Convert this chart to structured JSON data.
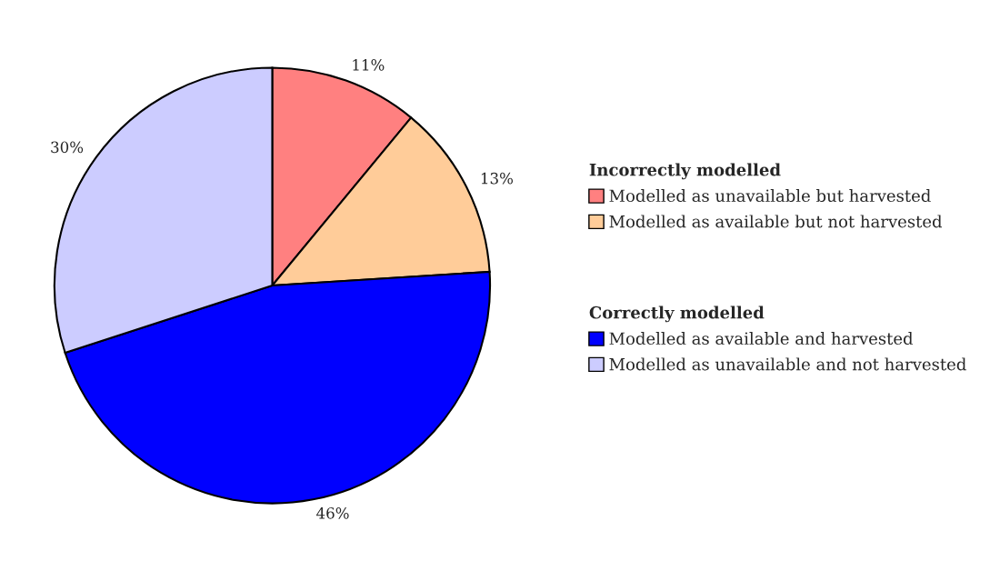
{
  "chart_data": {
    "type": "pie",
    "categories": [
      "Modelled as unavailable but harvested",
      "Modelled as available but not harvested",
      "Modelled as available and harvested",
      "Modelled as unavailable and not harvested"
    ],
    "values": [
      11,
      13,
      46,
      30
    ],
    "value_labels": [
      "11%",
      "13%",
      "46%",
      "30%"
    ],
    "colors": [
      "#ff8080",
      "#ffcc99",
      "#0000ff",
      "#ccccff"
    ],
    "annotations": [
      "Incorrectly modelled",
      "Correctly modelled"
    ],
    "legend": "right"
  }
}
